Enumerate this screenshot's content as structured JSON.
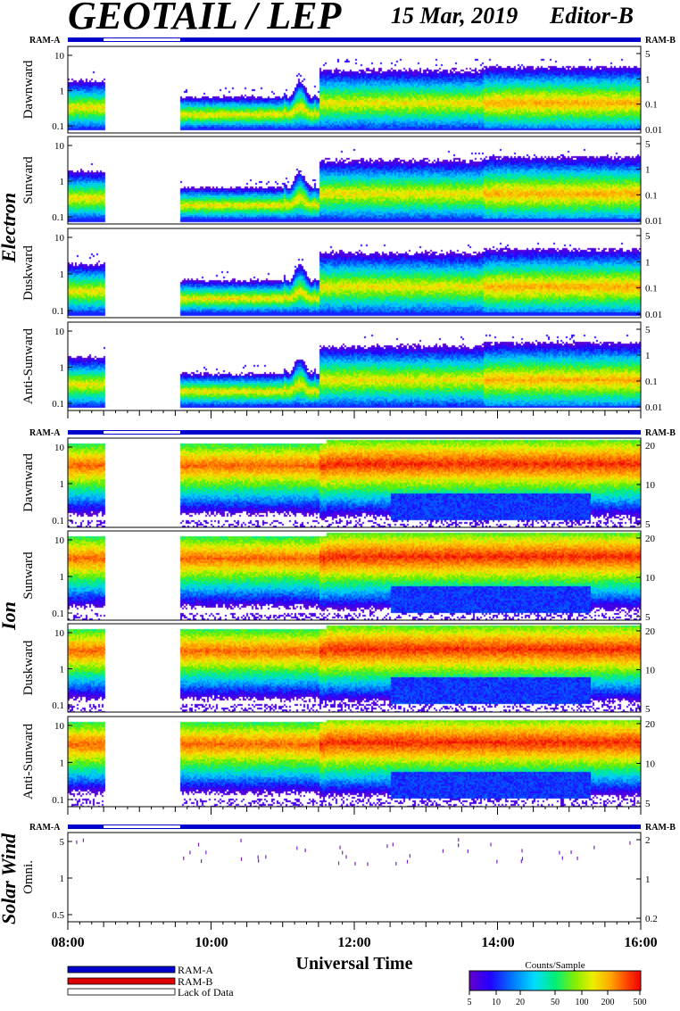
{
  "header": {
    "title": "GEOTAIL / LEP",
    "date": "15 Mar, 2019",
    "editor": "Editor-B"
  },
  "ram_labels": {
    "left": "RAM-A",
    "right": "RAM-B"
  },
  "groups": [
    {
      "label": "Electron",
      "panels": [
        "Dawnward",
        "Sunward",
        "Duskward",
        "Anti-Sunward"
      ]
    },
    {
      "label": "Ion",
      "panels": [
        "Dawnward",
        "Sunward",
        "Duskward",
        "Anti-Sunward"
      ]
    },
    {
      "label": "Solar Wind",
      "panels": [
        "Omni."
      ]
    }
  ],
  "legend": {
    "items": [
      "RAM-A",
      "RAM-B",
      "Lack of Data"
    ],
    "colors": [
      "#0000cc",
      "#dd0000",
      "#ffffff"
    ],
    "colorbar_title": "Counts/Sample",
    "colorbar_ticks": [
      "5",
      "10",
      "20",
      "50",
      "100",
      "200",
      "500"
    ]
  },
  "chart_data": {
    "type": "heatmap",
    "xlabel": "Universal Time",
    "x_ticks": [
      "08:00",
      "10:00",
      "12:00",
      "14:00",
      "16:00"
    ],
    "x_range_hours": [
      8,
      16
    ],
    "data_gap_hours": [
      8.5,
      9.57
    ],
    "colormap": [
      "#6600cc",
      "#2200ff",
      "#0066ff",
      "#00ccff",
      "#00ee88",
      "#66ee00",
      "#eeee00",
      "#ffaa00",
      "#ff5500",
      "#ee0000"
    ],
    "panels": [
      {
        "group": "Electron",
        "name": "Dawnward",
        "left_ticks": [
          "10",
          "1",
          "0.1"
        ],
        "right_ticks": [
          "5",
          "1",
          "0.1",
          "0.01"
        ],
        "mode": "electron",
        "seed": 11
      },
      {
        "group": "Electron",
        "name": "Sunward",
        "left_ticks": [
          "10",
          "1",
          "0.1"
        ],
        "right_ticks": [
          "5",
          "1",
          "0.1",
          "0.01"
        ],
        "mode": "electron",
        "seed": 23
      },
      {
        "group": "Electron",
        "name": "Duskward",
        "left_ticks": [
          "10",
          "1",
          "0.1"
        ],
        "right_ticks": [
          "5",
          "1",
          "0.1",
          "0.01"
        ],
        "mode": "electron",
        "seed": 37
      },
      {
        "group": "Electron",
        "name": "Anti-Sunward",
        "left_ticks": [
          "10",
          "1",
          "0.1"
        ],
        "right_ticks": [
          "5",
          "1",
          "0.1",
          "0.01"
        ],
        "mode": "electron",
        "seed": 41
      },
      {
        "group": "Ion",
        "name": "Dawnward",
        "left_ticks": [
          "10",
          "1",
          "0.1"
        ],
        "right_ticks": [
          "20",
          "10",
          "5"
        ],
        "mode": "ion",
        "seed": 53
      },
      {
        "group": "Ion",
        "name": "Sunward",
        "left_ticks": [
          "10",
          "1",
          "0.1"
        ],
        "right_ticks": [
          "20",
          "10",
          "5"
        ],
        "mode": "ion",
        "seed": 67
      },
      {
        "group": "Ion",
        "name": "Duskward",
        "left_ticks": [
          "10",
          "1",
          "0.1"
        ],
        "right_ticks": [
          "20",
          "10",
          "5"
        ],
        "mode": "ion",
        "seed": 71
      },
      {
        "group": "Ion",
        "name": "Anti-Sunward",
        "left_ticks": [
          "10",
          "1",
          "0.1"
        ],
        "right_ticks": [
          "20",
          "10",
          "5"
        ],
        "mode": "ion",
        "seed": 89
      },
      {
        "group": "Solar Wind",
        "name": "Omni.",
        "left_ticks": [
          "5",
          "1",
          "0.5"
        ],
        "right_ticks": [
          "2",
          "1",
          "0.2"
        ],
        "mode": "solar",
        "seed": 97
      }
    ]
  }
}
